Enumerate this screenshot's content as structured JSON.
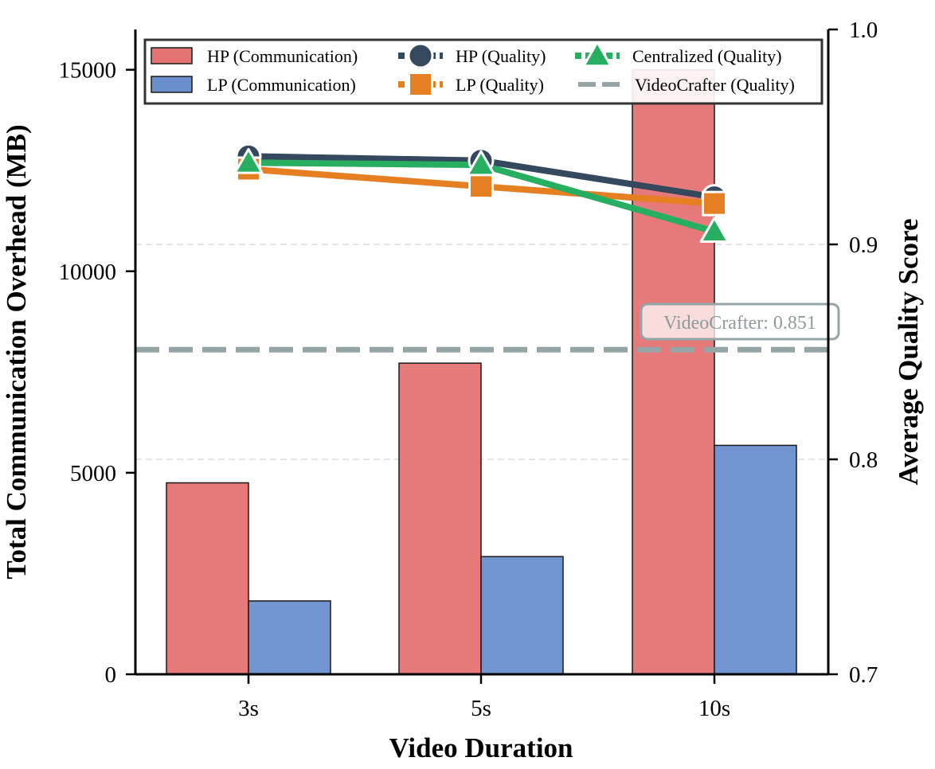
{
  "chart_data": {
    "type": "bar+line",
    "xlabel": "Video Duration",
    "categories": [
      "3s",
      "5s",
      "10s"
    ],
    "left_axis": {
      "label": "Total Communication Overhead (MB)",
      "ylim": [
        0,
        16000
      ],
      "ticks": [
        0,
        5000,
        10000,
        15000
      ],
      "tick_labels": [
        "0",
        "5000",
        "10000",
        "15000"
      ]
    },
    "right_axis": {
      "label": "Average Quality Score",
      "ylim": [
        0.7,
        1.0
      ],
      "ticks": [
        0.7,
        0.8,
        0.9,
        1.0
      ],
      "tick_labels": [
        "0.7",
        "0.8",
        "0.9",
        "1.0"
      ]
    },
    "bars": [
      {
        "name": "HP (Communication)",
        "color": "#e57373",
        "values": [
          4750,
          7720,
          15000
        ]
      },
      {
        "name": "LP (Communication)",
        "color": "#6a8fcf",
        "values": [
          1820,
          2920,
          5680
        ]
      }
    ],
    "lines": [
      {
        "name": "HP (Quality)",
        "color": "#34495e",
        "marker": "circle",
        "values": [
          0.941,
          0.939,
          0.922
        ]
      },
      {
        "name": "LP (Quality)",
        "color": "#e67e22",
        "marker": "square",
        "values": [
          0.935,
          0.927,
          0.919
        ]
      },
      {
        "name": "Centralized (Quality)",
        "color": "#27ae60",
        "marker": "triangle",
        "values": [
          0.938,
          0.937,
          0.906
        ]
      }
    ],
    "reference": {
      "name": "VideoCrafter (Quality)",
      "color": "#95a5a6",
      "value": 0.851,
      "annotation": "VideoCrafter: 0.851"
    },
    "legend_position": "top"
  }
}
